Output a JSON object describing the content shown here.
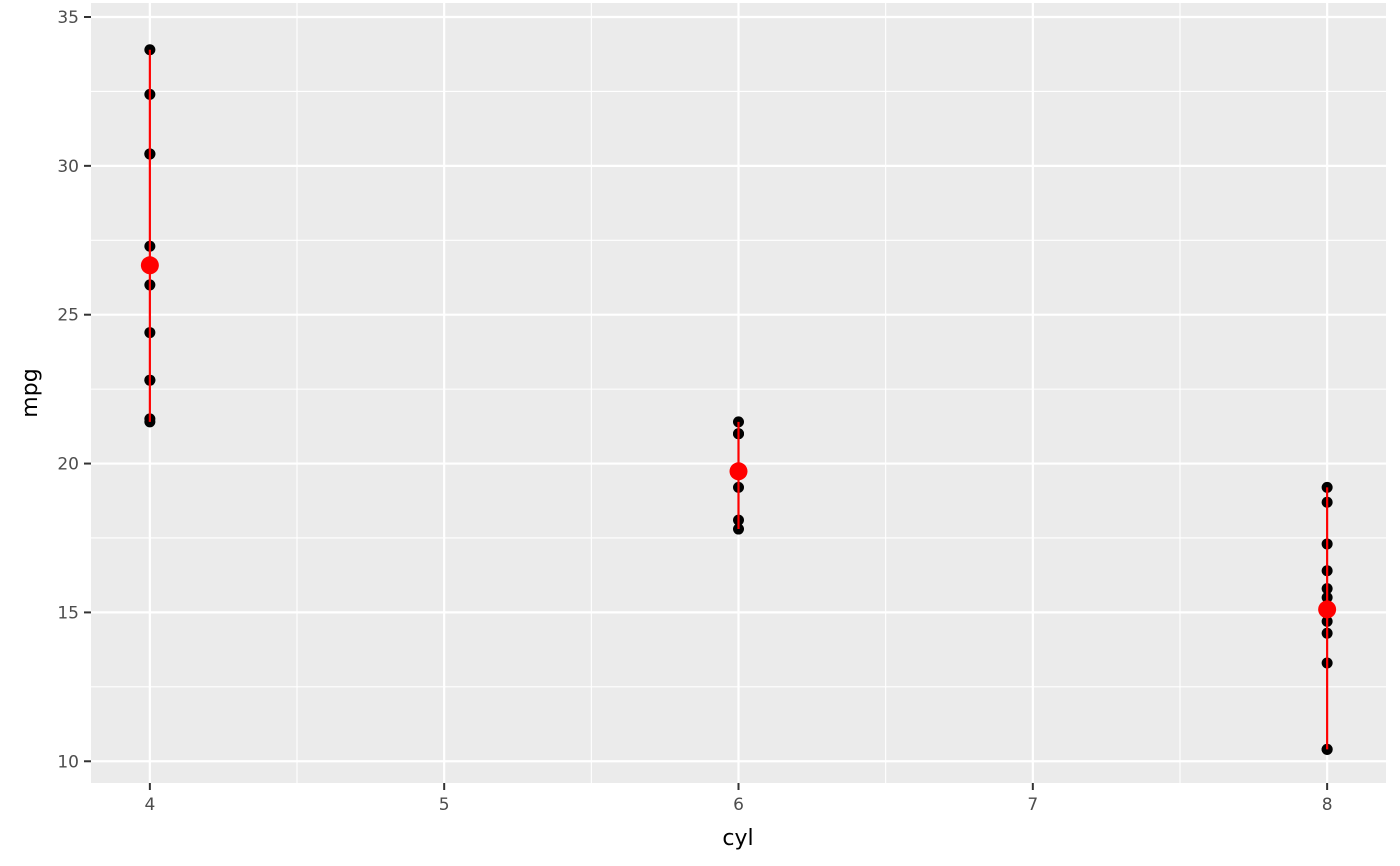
{
  "chart_data": {
    "type": "scatter",
    "title": "",
    "xlabel": "cyl",
    "ylabel": "mpg",
    "xlim": [
      3.8,
      8.2
    ],
    "ylim": [
      9.27,
      35.47
    ],
    "grid": true,
    "x_ticks": [
      "4",
      "5",
      "6",
      "7",
      "8"
    ],
    "y_ticks": [
      "10",
      "15",
      "20",
      "25",
      "30",
      "35"
    ],
    "points": [
      {
        "cyl": 4,
        "mpg": [
          22.8,
          24.4,
          22.8,
          32.4,
          30.4,
          33.9,
          21.5,
          27.3,
          26.0,
          30.4,
          21.4
        ]
      },
      {
        "cyl": 6,
        "mpg": [
          21.0,
          21.0,
          21.4,
          18.1,
          19.2,
          17.8,
          19.7
        ]
      },
      {
        "cyl": 8,
        "mpg": [
          18.7,
          14.3,
          16.4,
          17.3,
          15.2,
          10.4,
          10.4,
          14.7,
          15.5,
          15.2,
          13.3,
          19.2,
          15.8,
          15.0
        ]
      }
    ],
    "summary": [
      {
        "cyl": 4,
        "mean": 26.66,
        "min": 21.4,
        "max": 33.9
      },
      {
        "cyl": 6,
        "mean": 19.74,
        "min": 17.8,
        "max": 21.4
      },
      {
        "cyl": 8,
        "mean": 15.1,
        "min": 10.4,
        "max": 19.2
      }
    ],
    "colors": {
      "points": "#000000",
      "summary": "#ff0000",
      "panel": "#ebebeb",
      "grid": "#ffffff"
    }
  }
}
